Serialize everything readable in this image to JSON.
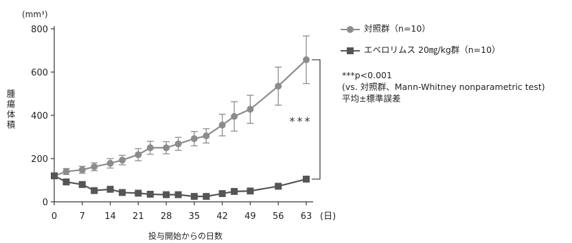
{
  "chart_data": {
    "type": "line",
    "y_unit": "(mm³)",
    "ylabel": "腫瘍体積",
    "xlabel": "投与開始からの日数",
    "x_unit": "(日)",
    "x_ticks": [
      0,
      7,
      14,
      21,
      28,
      35,
      42,
      49,
      56,
      63
    ],
    "y_ticks": [
      0,
      200,
      400,
      600,
      800
    ],
    "ylim": [
      0,
      800
    ],
    "xlim": [
      0,
      63
    ],
    "grid": false,
    "legend_position": "top-right",
    "series": [
      {
        "name": "対照群（n=10）",
        "marker": "circle",
        "color": "#8c8c8c",
        "x": [
          0,
          3,
          7,
          10,
          14,
          17,
          21,
          24,
          28,
          31,
          35,
          38,
          42,
          45,
          49,
          56,
          63
        ],
        "y": [
          120,
          140,
          148,
          162,
          178,
          193,
          218,
          250,
          250,
          268,
          292,
          305,
          355,
          395,
          428,
          535,
          657
        ],
        "err": [
          10,
          14,
          16,
          18,
          22,
          22,
          28,
          30,
          28,
          30,
          33,
          33,
          50,
          68,
          65,
          88,
          110
        ]
      },
      {
        "name": "エベロリムス 20㎎/kg群（n=10）",
        "marker": "square",
        "color": "#555555",
        "x": [
          0,
          3,
          7,
          10,
          14,
          17,
          21,
          24,
          28,
          31,
          35,
          38,
          42,
          45,
          49,
          56,
          63
        ],
        "y": [
          120,
          92,
          80,
          52,
          58,
          43,
          40,
          35,
          33,
          33,
          25,
          25,
          38,
          48,
          50,
          72,
          105
        ],
        "err": [
          8,
          8,
          8,
          6,
          6,
          5,
          5,
          5,
          5,
          5,
          4,
          4,
          6,
          7,
          7,
          8,
          10
        ]
      }
    ],
    "annotations": {
      "significance": "***",
      "notes": [
        "***p<0.001",
        "(vs. 対照群、Mann-Whitney nonparametric test)",
        "平均±標準誤差"
      ]
    }
  }
}
